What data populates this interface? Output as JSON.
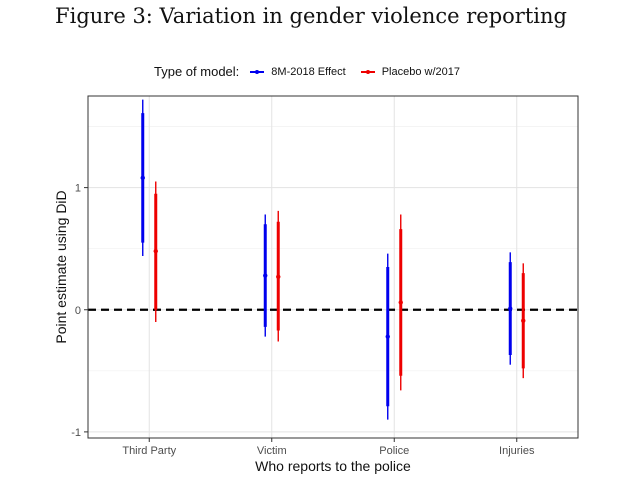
{
  "figure_title": "Figure 3: Variation in gender violence reporting",
  "legend": {
    "title": "Type of model:",
    "items": [
      {
        "label": "8M-2018 Effect",
        "color": "#0000ee"
      },
      {
        "label": "Placebo w/2017",
        "color": "#ee0000"
      }
    ]
  },
  "chart_data": {
    "type": "scatter",
    "title": "",
    "xlabel": "Who reports to the police",
    "ylabel": "Point estimate using DiD",
    "categories": [
      "Third Party",
      "Victim",
      "Police",
      "Injuries"
    ],
    "y_ticks": [
      -1,
      0,
      1
    ],
    "y_tick_labels": [
      "-1",
      "0",
      "1"
    ],
    "ylim": [
      -1.05,
      1.75
    ],
    "reference_line": {
      "y": 0,
      "style": "dashed",
      "color": "#000000"
    },
    "grid": true,
    "series": [
      {
        "name": "8M-2018 Effect",
        "color": "#0000ee",
        "points": [
          {
            "category": "Third Party",
            "estimate": 1.08,
            "ci95": [
              0.44,
              1.72
            ],
            "ci90": [
              0.55,
              1.61
            ]
          },
          {
            "category": "Victim",
            "estimate": 0.28,
            "ci95": [
              -0.22,
              0.78
            ],
            "ci90": [
              -0.14,
              0.7
            ]
          },
          {
            "category": "Police",
            "estimate": -0.22,
            "ci95": [
              -0.9,
              0.46
            ],
            "ci90": [
              -0.79,
              0.35
            ]
          },
          {
            "category": "Injuries",
            "estimate": 0.01,
            "ci95": [
              -0.45,
              0.47
            ],
            "ci90": [
              -0.37,
              0.39
            ]
          }
        ]
      },
      {
        "name": "Placebo w/2017",
        "color": "#ee0000",
        "points": [
          {
            "category": "Third Party",
            "estimate": 0.48,
            "ci95": [
              -0.1,
              1.05
            ],
            "ci90": [
              0.0,
              0.95
            ]
          },
          {
            "category": "Victim",
            "estimate": 0.27,
            "ci95": [
              -0.26,
              0.81
            ],
            "ci90": [
              -0.17,
              0.72
            ]
          },
          {
            "category": "Police",
            "estimate": 0.06,
            "ci95": [
              -0.66,
              0.78
            ],
            "ci90": [
              -0.54,
              0.66
            ]
          },
          {
            "category": "Injuries",
            "estimate": -0.09,
            "ci95": [
              -0.56,
              0.38
            ],
            "ci90": [
              -0.48,
              0.3
            ]
          }
        ]
      }
    ]
  }
}
